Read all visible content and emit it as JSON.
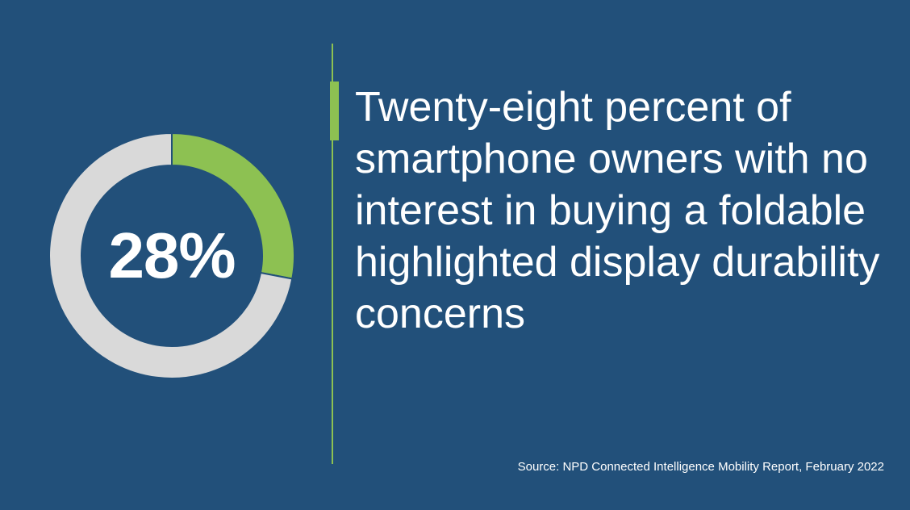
{
  "chart_data": {
    "type": "pie",
    "donut": true,
    "label": "28%",
    "slices": [
      {
        "value": 28,
        "color": "#8dc152"
      },
      {
        "value": 72,
        "color": "#d9d9d9"
      }
    ]
  },
  "headline": "Twenty-eight percent of smartphone owners with no interest in buying a foldable highlighted display durability concerns",
  "source": "Source: NPD Connected Intelligence Mobility Report, February 2022",
  "colors": {
    "background": "#22507a",
    "accent": "#8dc152",
    "ring_track": "#d9d9d9",
    "text": "#ffffff"
  }
}
